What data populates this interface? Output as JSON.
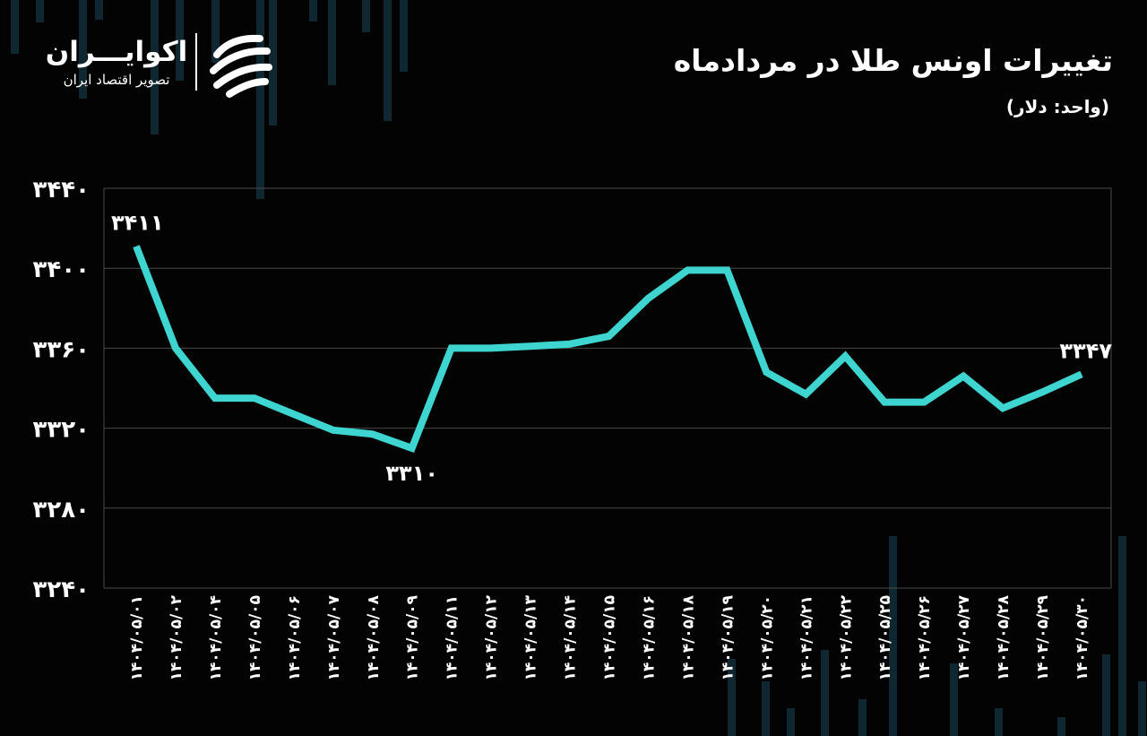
{
  "brand": {
    "name": "اکوایـــران",
    "tagline": "تصویر اقتصاد ایران",
    "logo_icon": "ecoiran-logo-icon"
  },
  "header": {
    "title": "تغییرات اونس طلا در مردادماه",
    "subtitle": "(واحد: دلار)"
  },
  "colors": {
    "background": "#030303",
    "line": "#3ed5d0",
    "grid": "#4a4a4a",
    "text": "#ffffff",
    "decor": "#0f2730"
  },
  "chart_data": {
    "type": "line",
    "title": "تغییرات اونس طلا در مردادماه",
    "ylabel": "",
    "xlabel": "",
    "ylim": [
      3240,
      3440
    ],
    "grid": true,
    "yticks": [
      3240,
      3280,
      3320,
      3360,
      3400,
      3440
    ],
    "ytick_labels": [
      "۳۲۴۰",
      "۳۲۸۰",
      "۳۳۲۰",
      "۳۳۶۰",
      "۳۴۰۰",
      "۳۴۴۰"
    ],
    "categories": [
      "۱۴۰۴/۰۵/۰۱",
      "۱۴۰۴/۰۵/۰۲",
      "۱۴۰۴/۰۵/۰۴",
      "۱۴۰۴/۰۵/۰۵",
      "۱۴۰۴/۰۵/۰۶",
      "۱۴۰۴/۰۵/۰۷",
      "۱۴۰۴/۰۵/۰۸",
      "۱۴۰۴/۰۵/۰۹",
      "۱۴۰۴/۰۵/۱۱",
      "۱۴۰۴/۰۵/۱۲",
      "۱۴۰۴/۰۵/۱۳",
      "۱۴۰۴/۰۵/۱۴",
      "۱۴۰۴/۰۵/۱۵",
      "۱۴۰۴/۰۵/۱۶",
      "۱۴۰۴/۰۵/۱۸",
      "۱۴۰۴/۰۵/۱۹",
      "۱۴۰۴/۰۵/۲۰",
      "۱۴۰۴/۰۵/۲۱",
      "۱۴۰۴/۰۵/۲۲",
      "۱۴۰۴/۰۵/۲۵",
      "۱۴۰۴/۰۵/۲۶",
      "۱۴۰۴/۰۵/۲۷",
      "۱۴۰۴/۰۵/۲۸",
      "۱۴۰۴/۰۵/۲۹",
      "۱۴۰۴/۰۵/۳۰"
    ],
    "series": [
      {
        "values": [
          3411,
          3360,
          3335,
          3335,
          3327,
          3319,
          3317,
          3310,
          3360,
          3360,
          3361,
          3362,
          3366,
          3385,
          3399,
          3399,
          3348,
          3337,
          3356,
          3333,
          3333,
          3346,
          3330,
          3338,
          3347
        ]
      }
    ],
    "annotations": [
      {
        "index": 0,
        "label": "۳۴۱۱",
        "position": "above"
      },
      {
        "index": 7,
        "label": "۳۳۱۰",
        "position": "below"
      },
      {
        "index": 24,
        "label": "۳۳۴۷",
        "position": "above"
      }
    ]
  }
}
